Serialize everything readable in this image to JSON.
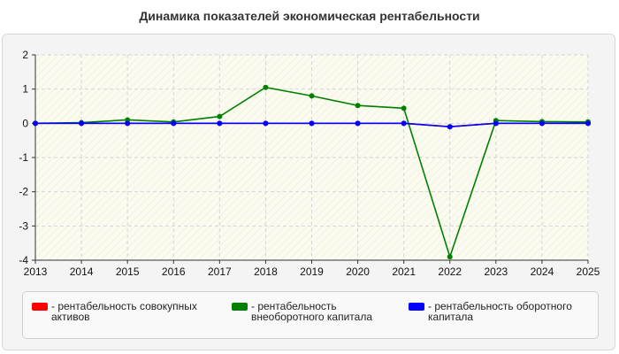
{
  "title": "Динамика показателей экономическая рентабельности",
  "chart_data": {
    "type": "line",
    "x": [
      "2013",
      "2014",
      "2015",
      "2016",
      "2017",
      "2018",
      "2019",
      "2020",
      "2021",
      "2022",
      "2023",
      "2024",
      "2025"
    ],
    "ylim": [
      -4,
      2
    ],
    "yticks": [
      "2",
      "1",
      "0",
      "-1",
      "-2",
      "-3",
      "-4"
    ],
    "grid": true,
    "legend_position": "bottom",
    "series": [
      {
        "name": "- рентабельность совокупных активов",
        "color": "#ff0000",
        "values": [
          0,
          0,
          0,
          0,
          0,
          0,
          0,
          0,
          0,
          -0.1,
          0,
          0,
          0
        ]
      },
      {
        "name": "- рентабельность внеоборотного капитала",
        "color": "#008000",
        "values": [
          0,
          0.02,
          0.1,
          0.04,
          0.2,
          1.05,
          0.8,
          0.52,
          0.44,
          -3.9,
          0.08,
          0.05,
          0.04
        ]
      },
      {
        "name": "- рентабельность оборотного капитала",
        "color": "#0000ff",
        "values": [
          0,
          0,
          0,
          0,
          0,
          0,
          0,
          0,
          0,
          -0.1,
          0,
          0,
          0
        ]
      }
    ]
  }
}
